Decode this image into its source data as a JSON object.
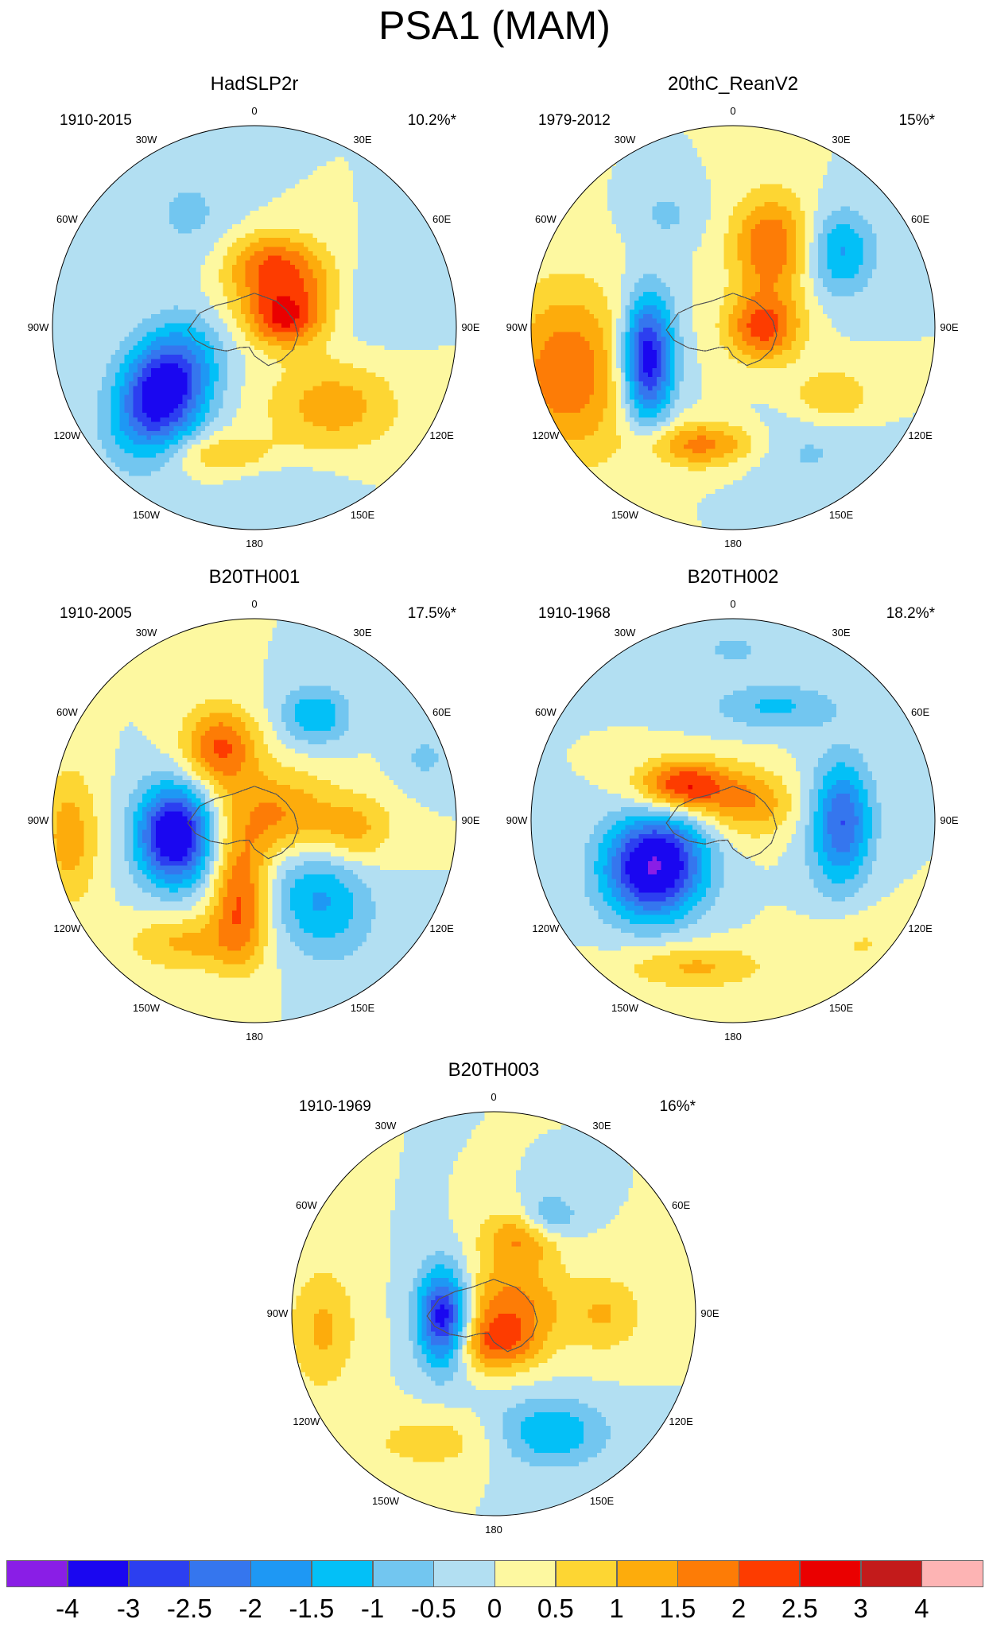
{
  "title": "PSA1 (MAM)",
  "longitude_labels": [
    "0",
    "30E",
    "60E",
    "90E",
    "120E",
    "150E",
    "180",
    "150W",
    "120W",
    "90W",
    "60W",
    "30W"
  ],
  "panels": [
    {
      "name": "HadSLP2r",
      "period": "1910-2015",
      "variance": "10.2%*",
      "features": [
        {
          "lon": 135,
          "colat": 0.55,
          "sx": 0.23,
          "sy": 0.16,
          "rot": 0,
          "amp": 1.3
        },
        {
          "lon": 235,
          "colat": 0.55,
          "sx": 0.15,
          "sy": 0.22,
          "rot": 25,
          "amp": -3.8
        },
        {
          "lon": 40,
          "colat": 0.25,
          "sx": 0.2,
          "sy": 0.15,
          "rot": 0,
          "amp": 1.9
        },
        {
          "lon": 80,
          "colat": 0.15,
          "sx": 0.12,
          "sy": 0.09,
          "rot": 0,
          "amp": 1.6
        },
        {
          "lon": 10,
          "colat": 0.35,
          "sx": 0.15,
          "sy": 0.1,
          "rot": 0,
          "amp": 1.0
        },
        {
          "lon": 195,
          "colat": 0.65,
          "sx": 0.18,
          "sy": 0.07,
          "rot": 0,
          "amp": 1.0
        },
        {
          "lon": 75,
          "colat": 0.6,
          "sx": 0.16,
          "sy": 0.16,
          "rot": 0,
          "amp": -0.6
        },
        {
          "lon": 170,
          "colat": 0.85,
          "sx": 0.2,
          "sy": 0.12,
          "rot": 0,
          "amp": -0.5
        },
        {
          "lon": 330,
          "colat": 0.65,
          "sx": 0.18,
          "sy": 0.18,
          "rot": 0,
          "amp": -0.6
        }
      ]
    },
    {
      "name": "20thC_ReanV2",
      "period": "1979-2012",
      "variance": "15%*",
      "features": [
        {
          "lon": 250,
          "colat": 0.45,
          "sx": 0.09,
          "sy": 0.22,
          "rot": 0,
          "amp": -3.6
        },
        {
          "lon": 255,
          "colat": 0.85,
          "sx": 0.22,
          "sy": 0.3,
          "rot": 0,
          "amp": 1.9
        },
        {
          "lon": 195,
          "colat": 0.6,
          "sx": 0.2,
          "sy": 0.08,
          "rot": 0,
          "amp": 1.7
        },
        {
          "lon": 25,
          "colat": 0.45,
          "sx": 0.14,
          "sy": 0.18,
          "rot": 0,
          "amp": 2.0
        },
        {
          "lon": 90,
          "colat": 0.15,
          "sx": 0.13,
          "sy": 0.12,
          "rot": 0,
          "amp": 2.2
        },
        {
          "lon": 55,
          "colat": 0.65,
          "sx": 0.12,
          "sy": 0.15,
          "rot": 0,
          "amp": -1.6
        },
        {
          "lon": 125,
          "colat": 0.6,
          "sx": 0.14,
          "sy": 0.1,
          "rot": 0,
          "amp": 1.0
        },
        {
          "lon": 150,
          "colat": 0.7,
          "sx": 0.22,
          "sy": 0.13,
          "rot": 0,
          "amp": -0.6
        },
        {
          "lon": 330,
          "colat": 0.65,
          "sx": 0.12,
          "sy": 0.1,
          "rot": 0,
          "amp": -0.6
        }
      ]
    },
    {
      "name": "B20TH001",
      "period": "1910-2005",
      "variance": "17.5%*",
      "features": [
        {
          "lon": 260,
          "colat": 0.4,
          "sx": 0.13,
          "sy": 0.17,
          "rot": 0,
          "amp": -4.0
        },
        {
          "lon": 140,
          "colat": 0.5,
          "sx": 0.17,
          "sy": 0.21,
          "rot": -25,
          "amp": -1.6
        },
        {
          "lon": 30,
          "colat": 0.6,
          "sx": 0.12,
          "sy": 0.1,
          "rot": 0,
          "amp": -1.5
        },
        {
          "lon": 335,
          "colat": 0.4,
          "sx": 0.13,
          "sy": 0.14,
          "rot": 0,
          "amp": 2.1
        },
        {
          "lon": 80,
          "colat": 0.12,
          "sx": 0.2,
          "sy": 0.16,
          "rot": 0,
          "amp": 1.6
        },
        {
          "lon": 190,
          "colat": 0.4,
          "sx": 0.1,
          "sy": 0.22,
          "rot": 0,
          "amp": 2.1
        },
        {
          "lon": 265,
          "colat": 0.92,
          "sx": 0.1,
          "sy": 0.24,
          "rot": 0,
          "amp": 1.3
        },
        {
          "lon": 210,
          "colat": 0.7,
          "sx": 0.2,
          "sy": 0.1,
          "rot": 0,
          "amp": 1.1
        },
        {
          "lon": 95,
          "colat": 0.5,
          "sx": 0.14,
          "sy": 0.12,
          "rot": 0,
          "amp": 1.1
        },
        {
          "lon": 70,
          "colat": 0.9,
          "sx": 0.1,
          "sy": 0.1,
          "rot": 0,
          "amp": -0.6
        }
      ]
    },
    {
      "name": "B20TH002",
      "period": "1910-1968",
      "variance": "18.2%*",
      "features": [
        {
          "lon": 240,
          "colat": 0.45,
          "sx": 0.17,
          "sy": 0.18,
          "rot": 30,
          "amp": -4.1
        },
        {
          "lon": 90,
          "colat": 0.55,
          "sx": 0.1,
          "sy": 0.2,
          "rot": 0,
          "amp": -2.0
        },
        {
          "lon": 20,
          "colat": 0.6,
          "sx": 0.22,
          "sy": 0.08,
          "rot": 0,
          "amp": -1.1
        },
        {
          "lon": 305,
          "colat": 0.3,
          "sx": 0.16,
          "sy": 0.09,
          "rot": 0,
          "amp": 2.6
        },
        {
          "lon": 45,
          "colat": 0.12,
          "sx": 0.16,
          "sy": 0.12,
          "rot": 0,
          "amp": 1.4
        },
        {
          "lon": 195,
          "colat": 0.75,
          "sx": 0.25,
          "sy": 0.08,
          "rot": 0,
          "amp": 1.1
        },
        {
          "lon": 100,
          "colat": 0.5,
          "sx": 0.12,
          "sy": 0.3,
          "rot": 0,
          "amp": -0.6
        },
        {
          "lon": 0,
          "colat": 0.85,
          "sx": 0.14,
          "sy": 0.08,
          "rot": 0,
          "amp": -0.6
        },
        {
          "lon": 135,
          "colat": 0.85,
          "sx": 0.2,
          "sy": 0.12,
          "rot": 0,
          "amp": 0.6
        }
      ]
    },
    {
      "name": "B20TH003",
      "period": "1910-1969",
      "variance": "16%*",
      "features": [
        {
          "lon": 265,
          "colat": 0.25,
          "sx": 0.09,
          "sy": 0.17,
          "rot": 0,
          "amp": -3.6
        },
        {
          "lon": 175,
          "colat": 0.15,
          "sx": 0.16,
          "sy": 0.1,
          "rot": 0,
          "amp": 1.8
        },
        {
          "lon": 55,
          "colat": 0.1,
          "sx": 0.18,
          "sy": 0.14,
          "rot": 0,
          "amp": 1.6
        },
        {
          "lon": 20,
          "colat": 0.4,
          "sx": 0.14,
          "sy": 0.1,
          "rot": 0,
          "amp": 1.5
        },
        {
          "lon": 30,
          "colat": 0.55,
          "sx": 0.1,
          "sy": 0.08,
          "rot": 0,
          "amp": -1.3
        },
        {
          "lon": 155,
          "colat": 0.65,
          "sx": 0.2,
          "sy": 0.12,
          "rot": 0,
          "amp": -1.5
        },
        {
          "lon": 90,
          "colat": 0.55,
          "sx": 0.14,
          "sy": 0.14,
          "rot": 0,
          "amp": 1.0
        },
        {
          "lon": 265,
          "colat": 0.85,
          "sx": 0.12,
          "sy": 0.22,
          "rot": 0,
          "amp": 1.1
        },
        {
          "lon": 205,
          "colat": 0.7,
          "sx": 0.24,
          "sy": 0.1,
          "rot": 0,
          "amp": 0.8
        }
      ]
    }
  ],
  "colorbar": {
    "labels": [
      "-4",
      "-3",
      "-2.5",
      "-2",
      "-1.5",
      "-1",
      "-0.5",
      "0",
      "0.5",
      "1",
      "1.5",
      "2",
      "2.5",
      "3",
      "4"
    ],
    "levels": [
      -4,
      -3,
      -2.5,
      -2,
      -1.5,
      -1,
      -0.5,
      0,
      0.5,
      1,
      1.5,
      2,
      2.5,
      3,
      4
    ],
    "colors": [
      "#8a1ee6",
      "#1a07f0",
      "#2c3ff0",
      "#3576ee",
      "#1e98f4",
      "#03c0f7",
      "#72c6f0",
      "#b2dff2",
      "#fdf8a0",
      "#fdd633",
      "#fdac0c",
      "#fd7c06",
      "#fd3c00",
      "#ea0000",
      "#c31b1b",
      "#fdb4b4"
    ]
  }
}
